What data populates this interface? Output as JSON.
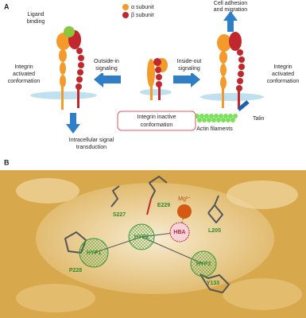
{
  "panel_a": {
    "label": "A",
    "alpha_subunit": "α subunit",
    "beta_subunit": "β subunit",
    "ligand_binding": [
      "Ligand",
      "binding"
    ],
    "left_conformation": [
      "Integrin",
      "activated",
      "conformation"
    ],
    "outside_in": [
      "Outside-in",
      "signaling"
    ],
    "inside_out": [
      "Inside-out",
      "signaling"
    ],
    "cell_adhesion": [
      "Cell adhesion",
      "and migration"
    ],
    "right_conformation": [
      "Integrin",
      "activated",
      "conformation"
    ],
    "inactive": [
      "Integrin inactive",
      "conformation"
    ],
    "talin": "Talin",
    "actin": "Actin filaments",
    "signal_transduction": [
      "Intracellular signal",
      "transduction"
    ]
  },
  "panel_b": {
    "label": "B",
    "metal": "Mg²⁺",
    "residues": [
      "S227",
      "E229",
      "L205",
      "P228",
      "Y133"
    ],
    "features": [
      "HBA",
      "HYP2",
      "HYP1",
      "HYP3"
    ]
  }
}
